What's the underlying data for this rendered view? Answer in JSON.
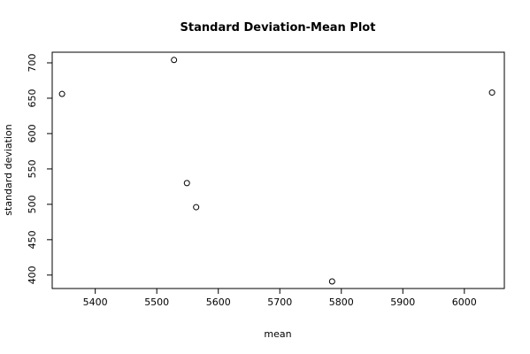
{
  "chart_data": {
    "type": "scatter",
    "title": "Standard Deviation-Mean Plot",
    "xlabel": "mean",
    "ylabel": "standard deviation",
    "xlim": [
      5330,
      6065
    ],
    "ylim": [
      381,
      715
    ],
    "x_ticks": [
      5400,
      5500,
      5600,
      5700,
      5800,
      5900,
      6000
    ],
    "y_ticks": [
      400,
      450,
      500,
      550,
      600,
      650,
      700
    ],
    "grid": false,
    "points": [
      {
        "x": 5346,
        "y": 656
      },
      {
        "x": 5528,
        "y": 704
      },
      {
        "x": 5549,
        "y": 530
      },
      {
        "x": 5564,
        "y": 496
      },
      {
        "x": 5785,
        "y": 391
      },
      {
        "x": 6045,
        "y": 658
      }
    ]
  }
}
